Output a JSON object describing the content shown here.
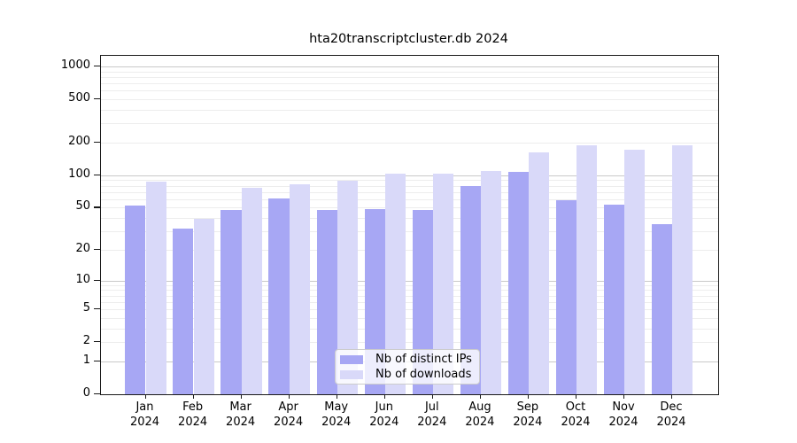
{
  "chart_data": {
    "type": "bar",
    "title": "hta20transcriptcluster.db 2024",
    "categories": [
      "Jan",
      "Feb",
      "Mar",
      "Apr",
      "May",
      "Jun",
      "Jul",
      "Aug",
      "Sep",
      "Oct",
      "Nov",
      "Dec"
    ],
    "category_year": "2024",
    "series": [
      {
        "name": "Nb of distinct IPs",
        "color": "#a7a7f4",
        "values": [
          52,
          32,
          48,
          61,
          48,
          49,
          48,
          80,
          107,
          59,
          53,
          35
        ]
      },
      {
        "name": "Nb of downloads",
        "color": "#d9d9f9",
        "values": [
          87,
          39,
          77,
          82,
          89,
          104,
          104,
          109,
          163,
          188,
          171,
          188
        ]
      }
    ],
    "ylabel": "",
    "xlabel": "",
    "y_scale": "log1p",
    "y_tick_labels": [
      "0",
      "1",
      "2",
      "5",
      "10",
      "20",
      "50",
      "100",
      "200",
      "500",
      "1000"
    ],
    "y_ticks": [
      0,
      1,
      2,
      5,
      10,
      20,
      50,
      100,
      200,
      500,
      1000
    ],
    "ylim_top": 1250,
    "grid": "horizontal major at powers of 10, faint minors at 2-9 per decade",
    "legend_position": "inside-bottom-center",
    "colors": {
      "grid_major": "#c9c9c9",
      "grid_minor": "#ededed",
      "spine": "#1a1a1a",
      "text": "#000000",
      "legend_border": "#cccccc"
    }
  }
}
